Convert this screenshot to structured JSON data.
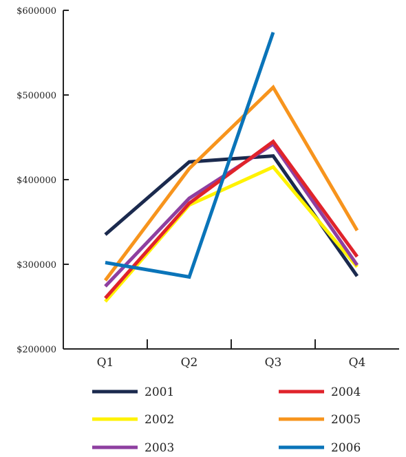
{
  "chart_data": {
    "type": "line",
    "title": "",
    "xlabel": "",
    "ylabel": "",
    "categories": [
      "Q1",
      "Q2",
      "Q3",
      "Q4"
    ],
    "ylim": [
      200000,
      600000
    ],
    "y_ticks": [
      200000,
      300000,
      400000,
      500000,
      600000
    ],
    "y_tick_labels": [
      "$200000",
      "$300000",
      "$400000",
      "$500000",
      "$600000"
    ],
    "grid": false,
    "legend_position": "bottom",
    "series": [
      {
        "name": "2001",
        "color": "#1b2a4e",
        "values": [
          335000,
          421000,
          428000,
          286000
        ]
      },
      {
        "name": "2002",
        "color": "#fff200",
        "values": [
          256000,
          370000,
          415000,
          297000
        ]
      },
      {
        "name": "2003",
        "color": "#8e3fa0",
        "values": [
          274000,
          378000,
          442000,
          299000
        ]
      },
      {
        "name": "2004",
        "color": "#e0232b",
        "values": [
          260000,
          372000,
          445000,
          309000
        ]
      },
      {
        "name": "2005",
        "color": "#f7941d",
        "values": [
          281000,
          413000,
          509000,
          340000
        ]
      },
      {
        "name": "2006",
        "color": "#0a74b9",
        "values": [
          302000,
          285000,
          574000,
          null
        ]
      }
    ]
  }
}
